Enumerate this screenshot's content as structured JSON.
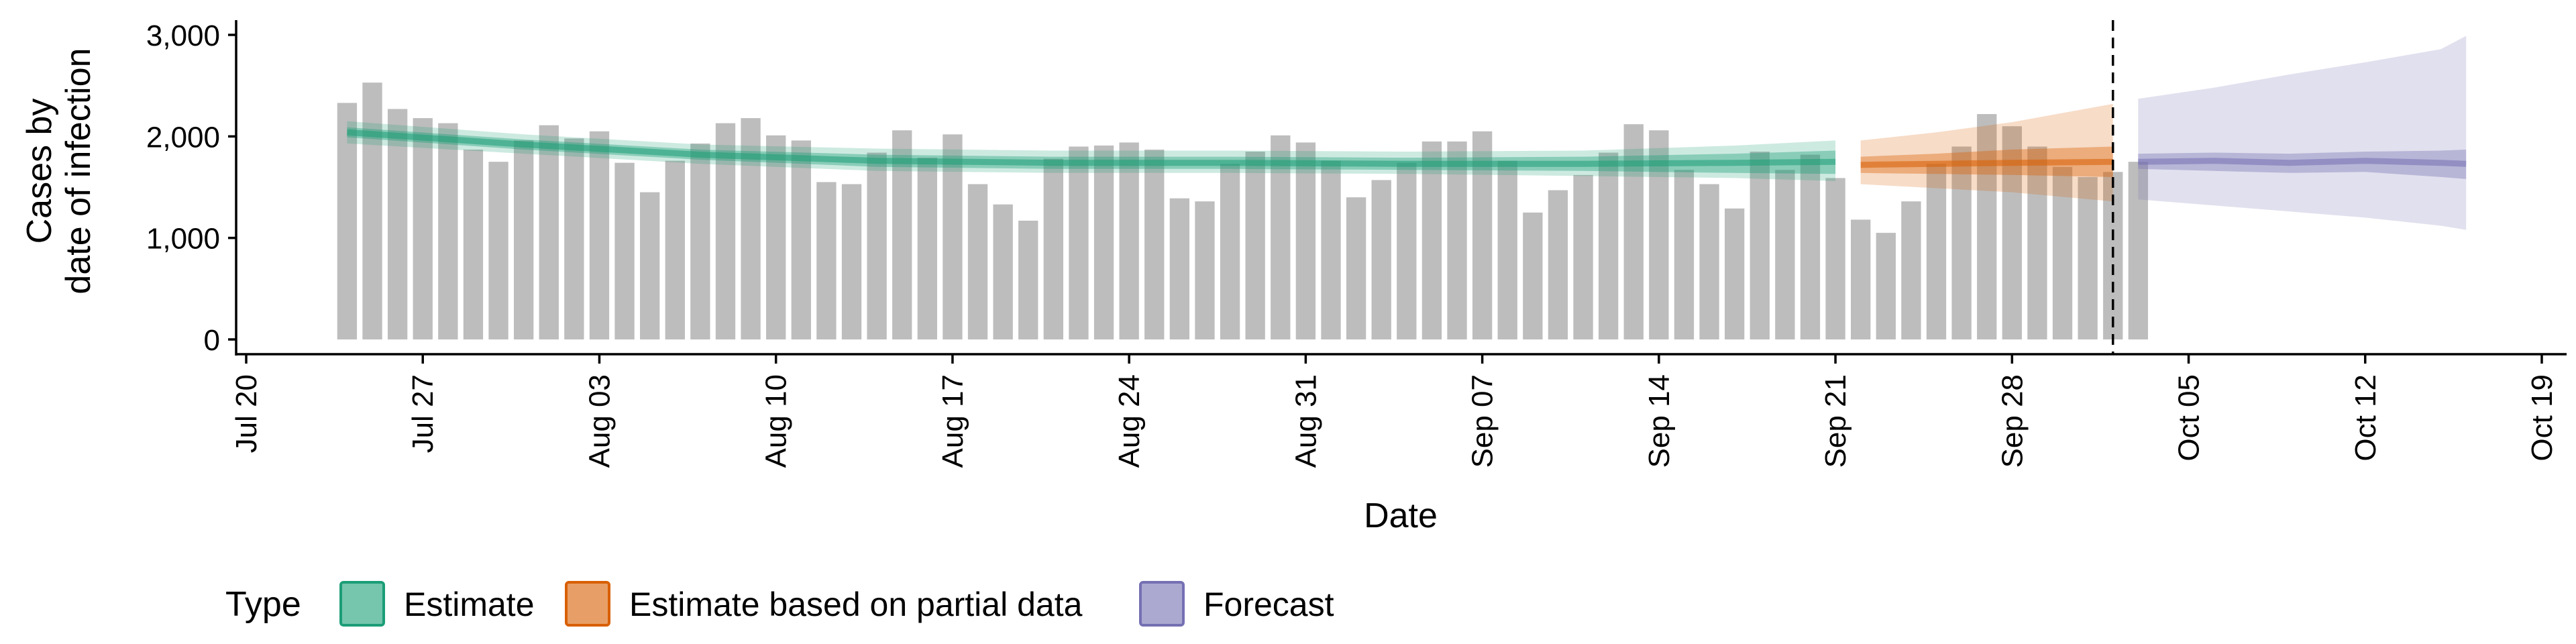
{
  "chart_data": {
    "type": "bar",
    "title": "",
    "xlabel": "Date",
    "ylabel_lines": [
      "Cases by",
      "date of infection"
    ],
    "ylim": [
      0,
      3000
    ],
    "y_ticks": [
      0,
      1000,
      2000,
      3000
    ],
    "y_tick_labels": [
      "0",
      "1,000",
      "2,000",
      "3,000"
    ],
    "x_ticks": [
      "2020-07-20",
      "2020-07-27",
      "2020-08-03",
      "2020-08-10",
      "2020-08-17",
      "2020-08-24",
      "2020-08-31",
      "2020-09-07",
      "2020-09-14",
      "2020-09-21",
      "2020-09-28",
      "2020-10-05",
      "2020-10-12",
      "2020-10-19"
    ],
    "x_tick_labels": [
      "Jul 20",
      "Jul 27",
      "Aug 03",
      "Aug 10",
      "Aug 17",
      "Aug 24",
      "Aug 31",
      "Sep 07",
      "Sep 14",
      "Sep 21",
      "Sep 28",
      "Oct 05",
      "Oct 12",
      "Oct 19"
    ],
    "x_range": [
      "2020-07-20",
      "2020-10-19"
    ],
    "grid": false,
    "legend": {
      "title": "Type",
      "placement": "bottom",
      "entries": [
        {
          "label": "Estimate",
          "color": "#1b9e77"
        },
        {
          "label": "Estimate based on partial data",
          "color": "#d95f02"
        },
        {
          "label": "Forecast",
          "color": "#7570b3"
        }
      ]
    },
    "bar_color": "#bdbdbd",
    "bars": {
      "start_date": "2020-07-24",
      "values": [
        2330,
        2530,
        2270,
        2180,
        2130,
        1870,
        1750,
        1960,
        2110,
        1980,
        2050,
        1740,
        1450,
        1760,
        1930,
        2130,
        2180,
        2010,
        1960,
        1550,
        1530,
        1840,
        2060,
        1790,
        2020,
        1530,
        1330,
        1170,
        1780,
        1900,
        1910,
        1940,
        1870,
        1390,
        1360,
        1730,
        1850,
        2010,
        1940,
        1760,
        1400,
        1570,
        1740,
        1950,
        1950,
        2050,
        1760,
        1250,
        1470,
        1620,
        1840,
        2120,
        2060,
        1670,
        1530,
        1290,
        1850,
        1670,
        1820,
        1590,
        1180,
        1050,
        1360,
        1730,
        1900,
        2220,
        2100,
        1900,
        1700,
        1600,
        1650,
        1750
      ]
    },
    "vline_date": "2020-10-02",
    "series": [
      {
        "name": "Estimate",
        "color": "#1b9e77",
        "x": [
          "2020-07-24",
          "2020-07-31",
          "2020-08-07",
          "2020-08-14",
          "2020-08-21",
          "2020-08-28",
          "2020-09-04",
          "2020-09-11",
          "2020-09-17",
          "2020-09-21"
        ],
        "median": [
          2040,
          1920,
          1820,
          1760,
          1740,
          1740,
          1730,
          1730,
          1740,
          1750
        ],
        "inner_lo": [
          1990,
          1870,
          1770,
          1700,
          1680,
          1680,
          1670,
          1660,
          1640,
          1630
        ],
        "inner_hi": [
          2090,
          1970,
          1870,
          1820,
          1800,
          1800,
          1790,
          1800,
          1830,
          1860
        ],
        "outer_lo": [
          1930,
          1830,
          1730,
          1660,
          1640,
          1640,
          1630,
          1610,
          1590,
          1560
        ],
        "outer_hi": [
          2150,
          2020,
          1920,
          1880,
          1860,
          1860,
          1850,
          1860,
          1910,
          1960
        ]
      },
      {
        "name": "Estimate based on partial data",
        "color": "#d95f02",
        "x": [
          "2020-09-22",
          "2020-09-25",
          "2020-09-28",
          "2020-10-02"
        ],
        "median": [
          1720,
          1730,
          1740,
          1750
        ],
        "inner_lo": [
          1640,
          1630,
          1620,
          1600
        ],
        "inner_hi": [
          1800,
          1830,
          1870,
          1900
        ],
        "outer_lo": [
          1530,
          1490,
          1450,
          1360
        ],
        "outer_hi": [
          1960,
          2040,
          2140,
          2320
        ]
      },
      {
        "name": "Forecast",
        "color": "#7570b3",
        "x": [
          "2020-10-03",
          "2020-10-06",
          "2020-10-09",
          "2020-10-12",
          "2020-10-15",
          "2020-10-16"
        ],
        "median": [
          1750,
          1760,
          1740,
          1760,
          1740,
          1730
        ],
        "inner_lo": [
          1680,
          1660,
          1640,
          1650,
          1600,
          1580
        ],
        "inner_hi": [
          1830,
          1840,
          1830,
          1850,
          1860,
          1870
        ],
        "outer_lo": [
          1380,
          1320,
          1260,
          1200,
          1120,
          1080
        ],
        "outer_hi": [
          2370,
          2480,
          2610,
          2730,
          2860,
          2990
        ]
      }
    ]
  }
}
